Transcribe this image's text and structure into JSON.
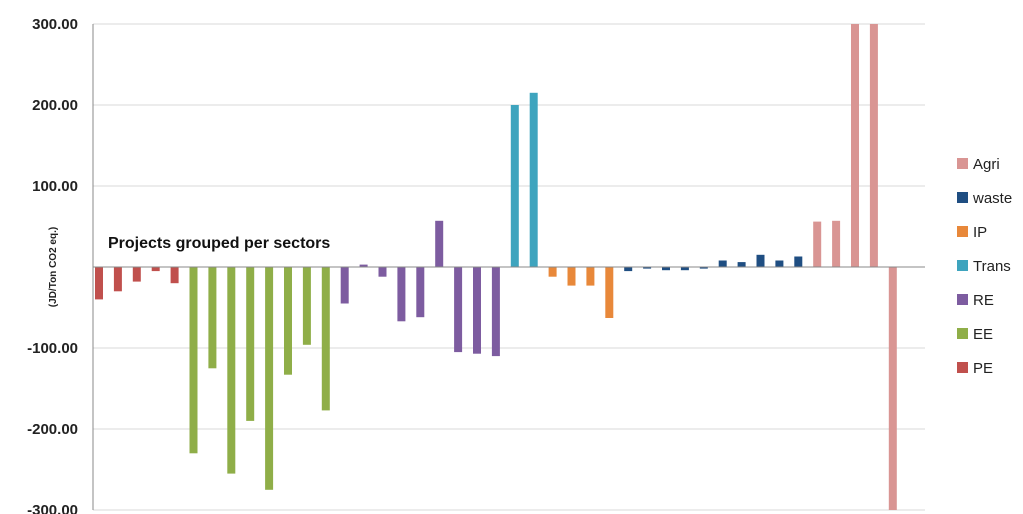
{
  "chart_data": {
    "type": "bar",
    "title": "",
    "xlabel": "",
    "ylabel": "(JD/Ton CO2 eq.)",
    "annotation": "Projects grouped per sectors",
    "ylim": [
      -300,
      300
    ],
    "yticks": [
      "300.00",
      "200.00",
      "100.00",
      "",
      "-100.00",
      "-200.00",
      "-300.00"
    ],
    "ytick_values": [
      300,
      200,
      100,
      0,
      -100,
      -200,
      -300
    ],
    "grid": true,
    "legend_position": "right",
    "legend_order": [
      "Agri",
      "waste",
      "IP",
      "Trans",
      "RE",
      "EE",
      "PE"
    ],
    "series": [
      {
        "name": "PE",
        "color": "#c0504d",
        "values": [
          -40,
          -30,
          -18,
          -5,
          -20
        ]
      },
      {
        "name": "EE",
        "color": "#8fae48",
        "values": [
          -230,
          -125,
          -255,
          -190,
          -275,
          -133,
          -96,
          -177
        ]
      },
      {
        "name": "RE",
        "color": "#7d5ca0",
        "values": [
          -45,
          3,
          -12,
          -67,
          -62,
          57,
          -105,
          -107,
          -110
        ]
      },
      {
        "name": "Trans",
        "color": "#3ea4be",
        "values": [
          200,
          215
        ]
      },
      {
        "name": "IP",
        "color": "#e8883a",
        "values": [
          -12,
          -23,
          -23,
          -63
        ]
      },
      {
        "name": "waste",
        "color": "#1f4e82",
        "values": [
          -5,
          -2,
          -4,
          -4,
          -2,
          8,
          6,
          15,
          8,
          13
        ]
      },
      {
        "name": "Agri",
        "color": "#d99593",
        "values": [
          56,
          57,
          300,
          300,
          -300
        ]
      }
    ]
  }
}
